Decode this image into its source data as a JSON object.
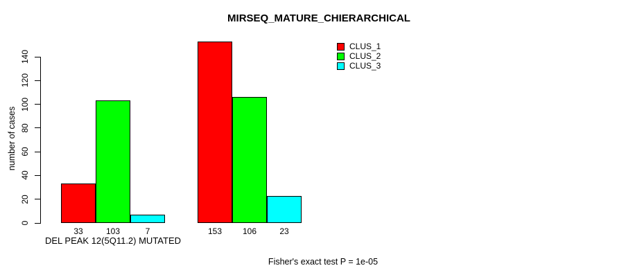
{
  "chart_data": {
    "type": "bar",
    "title": "MIRSEQ_MATURE_CHIERARCHICAL",
    "ylabel": "number of cases",
    "xlabel": "",
    "ylim": [
      0,
      140
    ],
    "yticks": [
      0,
      20,
      40,
      60,
      80,
      100,
      120,
      140
    ],
    "grid": false,
    "legend_position": "top-right",
    "series": [
      {
        "name": "CLUS_1",
        "color": "#ff0000"
      },
      {
        "name": "CLUS_2",
        "color": "#00ff00"
      },
      {
        "name": "CLUS_3",
        "color": "#00ffff"
      }
    ],
    "groups": [
      {
        "label": "DEL PEAK 12(5Q11.2) MUTATED",
        "values": [
          33,
          103,
          7
        ]
      },
      {
        "label": "",
        "values": [
          153,
          106,
          23
        ]
      }
    ],
    "bar_value_labels": [
      [
        33,
        103,
        7
      ],
      [
        153,
        106,
        23
      ]
    ],
    "annotation": "Fisher's exact test P = 1e-05"
  }
}
